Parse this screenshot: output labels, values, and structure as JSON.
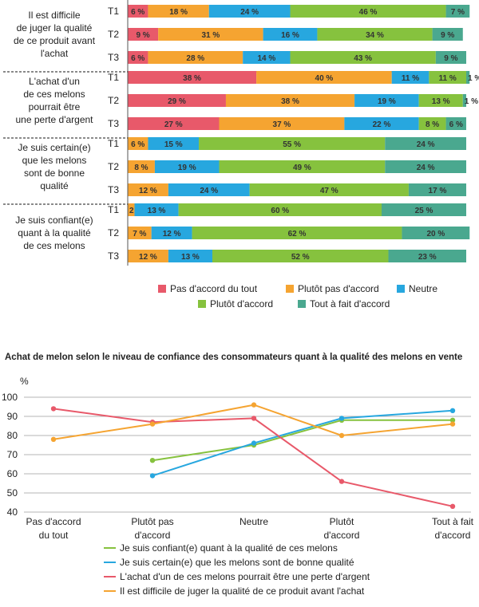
{
  "chart_data": [
    {
      "type": "stacked-bar",
      "categories_legend": [
        "Pas d'accord du tout",
        "Plutôt pas d'accord",
        "Neutre",
        "Plutôt d'accord",
        "Tout à fait d'accord"
      ],
      "colors": [
        "#e8596a",
        "#f5a431",
        "#27a7df",
        "#86c23e",
        "#4aa88f"
      ],
      "unit": "%",
      "groups": [
        {
          "question_lines": [
            "Il est difficile",
            "de juger la qualité",
            "de ce produit avant",
            "l'achat"
          ],
          "rows": [
            {
              "label": "T1",
              "values": [
                6,
                18,
                24,
                46,
                7
              ]
            },
            {
              "label": "T2",
              "values": [
                9,
                31,
                16,
                34,
                9
              ]
            },
            {
              "label": "T3",
              "values": [
                6,
                28,
                14,
                43,
                9
              ]
            }
          ]
        },
        {
          "question_lines": [
            "L'achat d'un",
            "de ces melons",
            "pourrait être",
            "une perte d'argent"
          ],
          "rows": [
            {
              "label": "T1",
              "values": [
                38,
                40,
                11,
                11,
                1
              ]
            },
            {
              "label": "T2",
              "values": [
                29,
                38,
                19,
                13,
                1
              ]
            },
            {
              "label": "T3",
              "values": [
                27,
                37,
                22,
                8,
                6
              ]
            }
          ]
        },
        {
          "question_lines": [
            "Je suis certain(e)",
            "que les melons",
            "sont de bonne",
            "qualité"
          ],
          "rows": [
            {
              "label": "T1",
              "values": [
                0,
                6,
                15,
                55,
                24
              ]
            },
            {
              "label": "T2",
              "values": [
                0,
                8,
                19,
                49,
                24
              ]
            },
            {
              "label": "T3",
              "values": [
                0,
                12,
                24,
                47,
                17
              ]
            }
          ]
        },
        {
          "question_lines": [
            "Je suis confiant(e)",
            "quant à la qualité",
            "de ces melons"
          ],
          "rows": [
            {
              "label": "T1",
              "values": [
                0,
                2,
                13,
                60,
                25
              ]
            },
            {
              "label": "T2",
              "values": [
                0,
                7,
                12,
                62,
                20
              ]
            },
            {
              "label": "T3",
              "values": [
                0,
                12,
                13,
                52,
                23
              ]
            }
          ]
        }
      ]
    },
    {
      "type": "line",
      "title": "Achat de melon selon le niveau de confiance des consommateurs quant à la qualité des melons en vente",
      "ylabel": "%",
      "ylim": [
        40,
        100
      ],
      "yticks": [
        40,
        50,
        60,
        70,
        80,
        90,
        100
      ],
      "categories": [
        [
          "Pas d'accord",
          "du tout"
        ],
        [
          "Plutôt pas",
          "d'accord"
        ],
        [
          "Neutre"
        ],
        [
          "Plutôt",
          "d'accord"
        ],
        [
          "Tout à fait",
          "d'accord"
        ]
      ],
      "series": [
        {
          "name": "Je suis confiant(e) quant à la qualité de ces melons",
          "color": "#86c23e",
          "values": [
            null,
            67,
            75,
            88,
            88
          ]
        },
        {
          "name": "Je suis certain(e) que les melons sont de bonne qualité",
          "color": "#27a7df",
          "values": [
            null,
            59,
            76,
            89,
            93
          ]
        },
        {
          "name": "L'achat d'un de ces melons pourrait être une perte d'argent",
          "color": "#e8596a",
          "values": [
            94,
            87,
            89,
            56,
            43
          ]
        },
        {
          "name": "Il est difficile de juger la qualité de ce produit avant l'achat",
          "color": "#f5a431",
          "values": [
            78,
            86,
            96,
            80,
            86
          ]
        }
      ]
    }
  ]
}
